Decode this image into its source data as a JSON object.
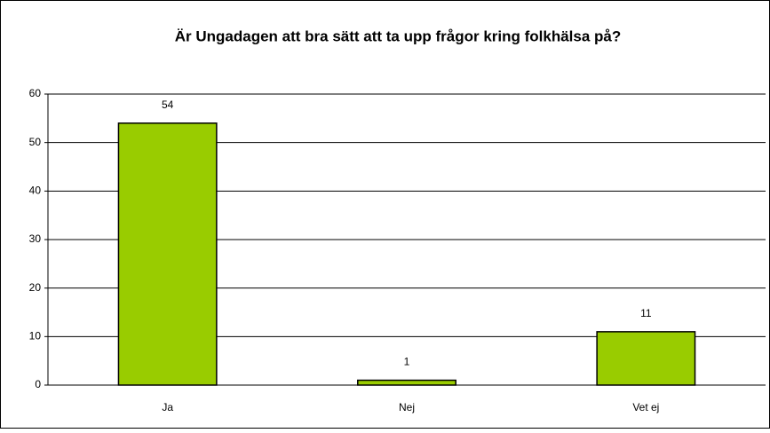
{
  "chart_data": {
    "type": "bar",
    "title": "Är Ungadagen att bra sätt att ta upp frågor kring folkhälsa på?",
    "categories": [
      "Ja",
      "Nej",
      "Vet ej"
    ],
    "values": [
      54,
      1,
      11
    ],
    "color": "#99cc00",
    "ylim": [
      0,
      60
    ],
    "yticks": [
      0,
      10,
      20,
      30,
      40,
      50,
      60
    ],
    "grid": true
  }
}
